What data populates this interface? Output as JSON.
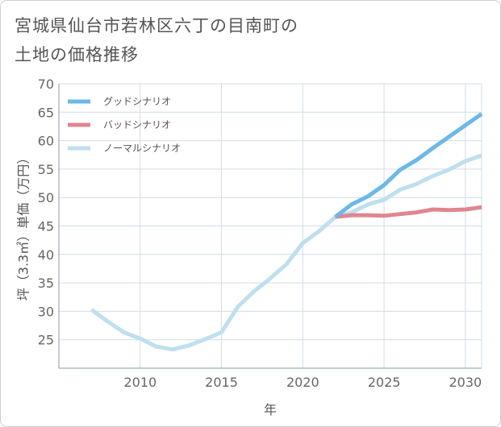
{
  "title": {
    "line1": "宮城県仙台市若林区六丁の目南町の",
    "line2": "土地の価格推移"
  },
  "colors": {
    "good": "#6cb8e8",
    "bad": "#e0868f",
    "normal": "#bfdfee",
    "grid": "#cfdde8",
    "axis": "#8a9aa8"
  },
  "chart_data": {
    "type": "line",
    "title": "宮城県仙台市若林区六丁の目南町の土地の価格推移",
    "xlabel": "年",
    "ylabel": "坪（3.3㎡）単価（万円）",
    "xlim": [
      2005,
      2031
    ],
    "ylim": [
      20,
      70
    ],
    "xticks": [
      2010,
      2015,
      2020,
      2025,
      2030
    ],
    "yticks": [
      25,
      30,
      35,
      40,
      45,
      50,
      55,
      60,
      65,
      70
    ],
    "grid": true,
    "legend_position": "top-left",
    "series": [
      {
        "key": "good",
        "name": "グッドシナリオ",
        "x": [
          2022,
          2023,
          2024,
          2025,
          2026,
          2027,
          2028,
          2029,
          2030,
          2031
        ],
        "values": [
          46.6,
          48.8,
          50.2,
          52.2,
          54.9,
          56.6,
          58.7,
          60.7,
          62.7,
          64.7
        ]
      },
      {
        "key": "bad",
        "name": "バッドシナリオ",
        "x": [
          2022,
          2023,
          2024,
          2025,
          2026,
          2027,
          2028,
          2029,
          2030,
          2031
        ],
        "values": [
          46.6,
          46.9,
          46.9,
          46.8,
          47.1,
          47.4,
          47.9,
          47.8,
          47.9,
          48.3
        ]
      },
      {
        "key": "normal",
        "name": "ノーマルシナリオ",
        "x": [
          2007,
          2008,
          2009,
          2010,
          2011,
          2012,
          2013,
          2014,
          2015,
          2016,
          2017,
          2018,
          2019,
          2020,
          2021,
          2022,
          2023,
          2024,
          2025,
          2026,
          2027,
          2028,
          2029,
          2030,
          2031
        ],
        "values": [
          30.3,
          28.2,
          26.3,
          25.2,
          23.8,
          23.3,
          24.0,
          25.1,
          26.3,
          30.8,
          33.5,
          35.8,
          38.3,
          42.0,
          44.1,
          46.6,
          47.4,
          48.8,
          49.6,
          51.4,
          52.4,
          53.8,
          54.9,
          56.4,
          57.4
        ]
      }
    ]
  }
}
